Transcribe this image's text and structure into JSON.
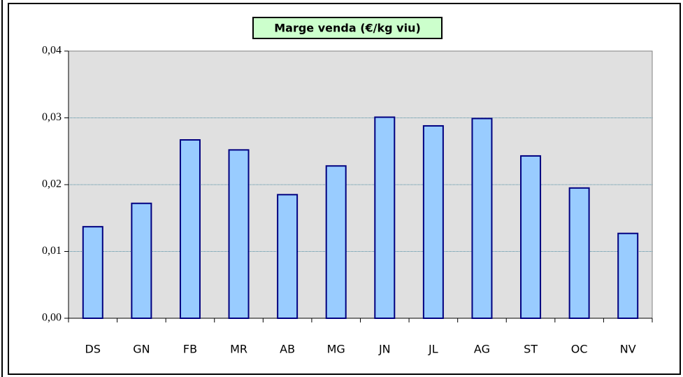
{
  "chart_data": {
    "type": "bar",
    "title": "Marge venda (€/kg viu)",
    "categories": [
      "DS",
      "GN",
      "FB",
      "MR",
      "AB",
      "MG",
      "JN",
      "JL",
      "AG",
      "ST",
      "OC",
      "NV"
    ],
    "values": [
      0.0137,
      0.0172,
      0.0267,
      0.0252,
      0.0185,
      0.0228,
      0.0301,
      0.0288,
      0.0299,
      0.0243,
      0.0195,
      0.0127
    ],
    "color": "#99ccff",
    "ylim": [
      0,
      0.04
    ],
    "yticks": [
      {
        "value": 0,
        "label": "0,00"
      },
      {
        "value": 0.01,
        "label": "0,01"
      },
      {
        "value": 0.02,
        "label": "0,02"
      },
      {
        "value": 0.03,
        "label": "0,03"
      },
      {
        "value": 0.04,
        "label": "0,04"
      }
    ],
    "grid": true
  }
}
